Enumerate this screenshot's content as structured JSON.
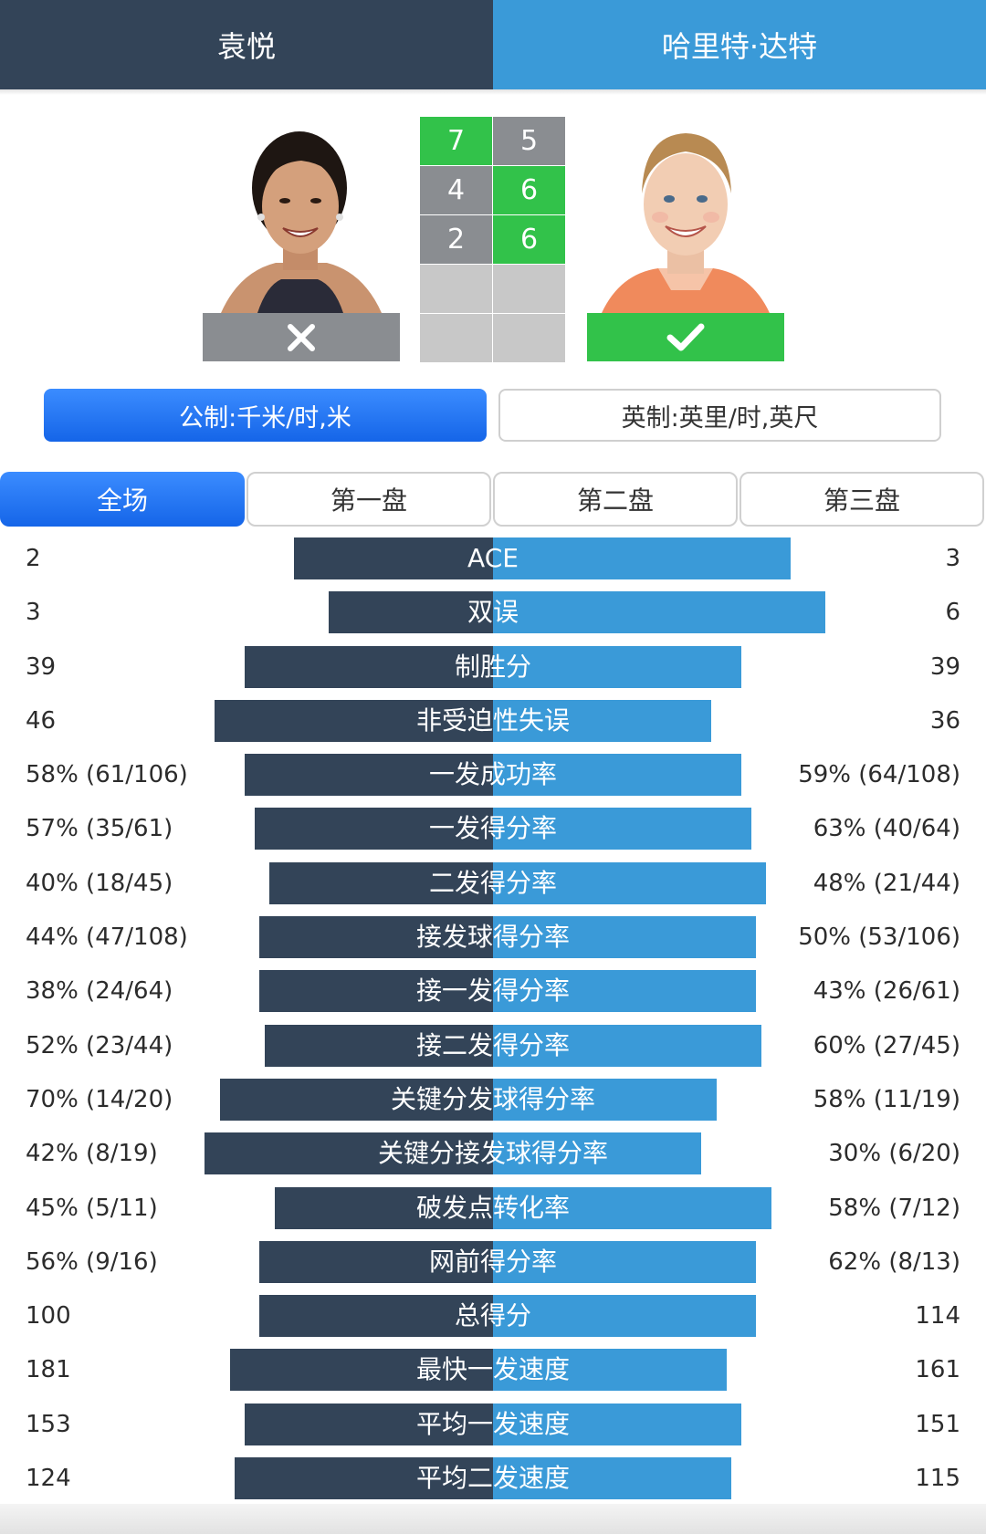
{
  "header": {
    "player1": "袁悦",
    "player2": "哈里特·达特"
  },
  "players": [
    {
      "name": "袁悦",
      "result": "lose",
      "result_icon": "close-icon"
    },
    {
      "name": "哈里特·达特",
      "result": "win",
      "result_icon": "check-icon"
    }
  ],
  "scores": [
    {
      "p1": "7",
      "p2": "5",
      "winner": "p1"
    },
    {
      "p1": "4",
      "p2": "6",
      "winner": "p2"
    },
    {
      "p1": "2",
      "p2": "6",
      "winner": "p2"
    },
    {
      "p1": "",
      "p2": "",
      "winner": ""
    },
    {
      "p1": "",
      "p2": "",
      "winner": ""
    }
  ],
  "units": {
    "metric": "公制:千米/时,米",
    "imperial": "英制:英里/时,英尺",
    "selected": "metric"
  },
  "tabs": [
    "全场",
    "第一盘",
    "第二盘",
    "第三盘"
  ],
  "selected_tab": "全场",
  "colors": {
    "player1": "#334458",
    "player2": "#3a9ad8",
    "win": "#32c24a",
    "lose": "#8a8d91",
    "accent": "#1f6ff0"
  },
  "stats": [
    {
      "label": "ACE",
      "left": "2",
      "right": "3",
      "lw": 0.4,
      "rw": 0.6
    },
    {
      "label": "双误",
      "left": "3",
      "right": "6",
      "lw": 0.33,
      "rw": 0.67
    },
    {
      "label": "制胜分",
      "left": "39",
      "right": "39",
      "lw": 0.5,
      "rw": 0.5
    },
    {
      "label": "非受迫性失误",
      "left": "46",
      "right": "36",
      "lw": 0.56,
      "rw": 0.44
    },
    {
      "label": "一发成功率",
      "left": "58% (61/106)",
      "right": "59% (64/108)",
      "lw": 0.5,
      "rw": 0.5
    },
    {
      "label": "一发得分率",
      "left": "57% (35/61)",
      "right": "63% (40/64)",
      "lw": 0.48,
      "rw": 0.52
    },
    {
      "label": "二发得分率",
      "left": "40% (18/45)",
      "right": "48% (21/44)",
      "lw": 0.45,
      "rw": 0.55
    },
    {
      "label": "接发球得分率",
      "left": "44% (47/108)",
      "right": "50% (53/106)",
      "lw": 0.47,
      "rw": 0.53
    },
    {
      "label": "接一发得分率",
      "left": "38% (24/64)",
      "right": "43% (26/61)",
      "lw": 0.47,
      "rw": 0.53
    },
    {
      "label": "接二发得分率",
      "left": "52% (23/44)",
      "right": "60% (27/45)",
      "lw": 0.46,
      "rw": 0.54
    },
    {
      "label": "关键分发球得分率",
      "left": "70% (14/20)",
      "right": "58% (11/19)",
      "lw": 0.55,
      "rw": 0.45
    },
    {
      "label": "关键分接发球得分率",
      "left": "42% (8/19)",
      "right": "30% (6/20)",
      "lw": 0.58,
      "rw": 0.42
    },
    {
      "label": "破发点转化率",
      "left": "45% (5/11)",
      "right": "58% (7/12)",
      "lw": 0.44,
      "rw": 0.56
    },
    {
      "label": "网前得分率",
      "left": "56% (9/16)",
      "right": "62% (8/13)",
      "lw": 0.47,
      "rw": 0.53
    },
    {
      "label": "总得分",
      "left": "100",
      "right": "114",
      "lw": 0.47,
      "rw": 0.53
    },
    {
      "label": "最快一发速度",
      "left": "181",
      "right": "161",
      "lw": 0.53,
      "rw": 0.47
    },
    {
      "label": "平均一发速度",
      "left": "153",
      "right": "151",
      "lw": 0.5,
      "rw": 0.5
    },
    {
      "label": "平均二发速度",
      "left": "124",
      "right": "115",
      "lw": 0.52,
      "rw": 0.48
    }
  ]
}
